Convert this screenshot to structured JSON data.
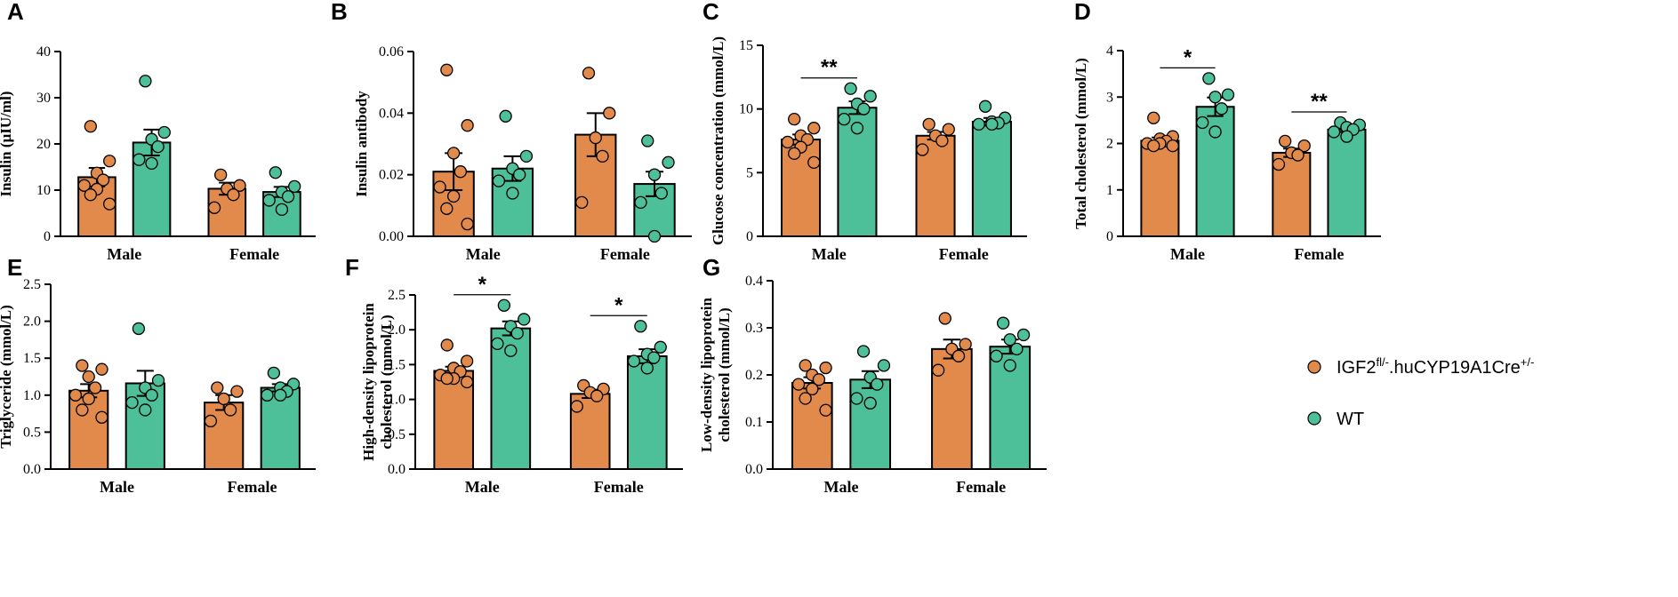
{
  "colors": {
    "ko": "#E28A4B",
    "wt": "#4DBF99",
    "axis": "#000000"
  },
  "legend": {
    "ko_base": "IGF2",
    "ko_sup1": "fl/-",
    "ko_mid": ".huCYP19A1Cre",
    "ko_sup2": "+/-",
    "wt": "WT"
  },
  "chart_data": [
    {
      "panel": "A",
      "type": "bar",
      "ylabel": "Insulin (µIU/ml)",
      "ylim": [
        0,
        40
      ],
      "yticks": [
        0,
        10,
        20,
        30,
        40
      ],
      "tick_labels": [
        "0",
        "10",
        "20",
        "30",
        "40"
      ],
      "categories": [
        "Male",
        "Female"
      ],
      "series": [
        {
          "name": "IGF2fl/-.huCYP19A1Cre+/-",
          "values": [
            12.8,
            10.3
          ],
          "sem": [
            2.0,
            1.3
          ],
          "points": [
            [
              23.8,
              16.3,
              13.7,
              12.2,
              11.0,
              10.2,
              9.0,
              7.0
            ],
            [
              13.3,
              11.0,
              10.3,
              9.0,
              6.2
            ]
          ]
        },
        {
          "name": "WT",
          "values": [
            20.3,
            9.6
          ],
          "sem": [
            2.8,
            1.1
          ],
          "points": [
            [
              33.6,
              22.5,
              21.0,
              19.4,
              16.6,
              15.8
            ],
            [
              13.8,
              10.8,
              9.6,
              8.6,
              7.8,
              5.8
            ]
          ]
        }
      ],
      "significance": []
    },
    {
      "panel": "B",
      "type": "bar",
      "ylabel": "Insulin antibody",
      "ylim": [
        0,
        0.06
      ],
      "yticks": [
        0,
        0.02,
        0.04,
        0.06
      ],
      "tick_labels": [
        "0.00",
        "0.02",
        "0.04",
        "0.06"
      ],
      "categories": [
        "Male",
        "Female"
      ],
      "series": [
        {
          "name": "IGF2fl/-.huCYP19A1Cre+/-",
          "values": [
            0.021,
            0.033
          ],
          "sem": [
            0.006,
            0.007
          ],
          "points": [
            [
              0.054,
              0.036,
              0.027,
              0.021,
              0.016,
              0.013,
              0.009,
              0.004
            ],
            [
              0.053,
              0.04,
              0.032,
              0.026,
              0.011
            ]
          ]
        },
        {
          "name": "WT",
          "values": [
            0.022,
            0.017
          ],
          "sem": [
            0.004,
            0.004
          ],
          "points": [
            [
              0.039,
              0.026,
              0.022,
              0.02,
              0.018,
              0.014
            ],
            [
              0.031,
              0.024,
              0.02,
              0.014,
              0.011,
              0.0
            ]
          ]
        }
      ],
      "significance": []
    },
    {
      "panel": "C",
      "type": "bar",
      "ylabel": "Glucose concentration (mmol/L)",
      "ylim": [
        0,
        15
      ],
      "yticks": [
        0,
        5,
        10,
        15
      ],
      "tick_labels": [
        "0",
        "5",
        "10",
        "15"
      ],
      "categories": [
        "Male",
        "Female"
      ],
      "series": [
        {
          "name": "IGF2fl/-.huCYP19A1Cre+/-",
          "values": [
            7.6,
            7.9
          ],
          "sem": [
            0.4,
            0.3
          ],
          "points": [
            [
              9.2,
              8.5,
              7.9,
              7.6,
              7.4,
              7.0,
              6.5,
              5.8
            ],
            [
              8.8,
              8.4,
              7.9,
              7.5,
              6.8
            ]
          ]
        },
        {
          "name": "WT",
          "values": [
            10.1,
            9.0
          ],
          "sem": [
            0.5,
            0.3
          ],
          "points": [
            [
              11.6,
              11.0,
              10.4,
              10.0,
              9.2,
              8.5
            ],
            [
              10.2,
              9.3,
              9.0,
              8.9,
              8.8,
              8.8
            ]
          ]
        }
      ],
      "significance": [
        {
          "category": "Male",
          "label": "**"
        }
      ]
    },
    {
      "panel": "D",
      "type": "bar",
      "ylabel": "Total cholesterol (mmol/L)",
      "ylim": [
        0,
        4
      ],
      "yticks": [
        0,
        1,
        2,
        3,
        4
      ],
      "tick_labels": [
        "0",
        "1",
        "2",
        "3",
        "4"
      ],
      "categories": [
        "Male",
        "Female"
      ],
      "series": [
        {
          "name": "IGF2fl/-.huCYP19A1Cre+/-",
          "values": [
            2.06,
            1.8
          ],
          "sem": [
            0.07,
            0.09
          ],
          "points": [
            [
              2.55,
              2.15,
              2.1,
              2.05,
              2.0,
              2.0,
              1.95,
              1.95
            ],
            [
              2.05,
              1.95,
              1.8,
              1.75,
              1.55
            ]
          ]
        },
        {
          "name": "WT",
          "values": [
            2.79,
            2.3
          ],
          "sem": [
            0.2,
            0.05
          ],
          "points": [
            [
              3.4,
              3.05,
              3.0,
              2.75,
              2.45,
              2.25
            ],
            [
              2.45,
              2.4,
              2.35,
              2.3,
              2.25,
              2.15
            ]
          ]
        }
      ],
      "significance": [
        {
          "category": "Male",
          "label": "*"
        },
        {
          "category": "Female",
          "label": "**"
        }
      ]
    },
    {
      "panel": "E",
      "type": "bar",
      "ylabel": "Triglyceride (mmol/L)",
      "ylim": [
        0,
        2.5
      ],
      "yticks": [
        0,
        0.5,
        1.0,
        1.5,
        2.0,
        2.5
      ],
      "tick_labels": [
        "0.0",
        "0.5",
        "1.0",
        "1.5",
        "2.0",
        "2.5"
      ],
      "categories": [
        "Male",
        "Female"
      ],
      "series": [
        {
          "name": "IGF2fl/-.huCYP19A1Cre+/-",
          "values": [
            1.06,
            0.9
          ],
          "sem": [
            0.09,
            0.1
          ],
          "points": [
            [
              1.4,
              1.35,
              1.25,
              1.1,
              1.0,
              0.95,
              0.8,
              0.7
            ],
            [
              1.1,
              1.05,
              0.95,
              0.8,
              0.65
            ]
          ]
        },
        {
          "name": "WT",
          "values": [
            1.16,
            1.1
          ],
          "sem": [
            0.17,
            0.05
          ],
          "points": [
            [
              1.9,
              1.2,
              1.1,
              1.0,
              0.9,
              0.8
            ],
            [
              1.3,
              1.15,
              1.1,
              1.05,
              1.0,
              1.0
            ]
          ]
        }
      ],
      "significance": []
    },
    {
      "panel": "F",
      "type": "bar",
      "ylabel": "High-density lipoprotein cholesterol (mmol/L)",
      "ylim": [
        0,
        2.5
      ],
      "yticks": [
        0,
        0.5,
        1.0,
        1.5,
        2.0,
        2.5
      ],
      "tick_labels": [
        "0.0",
        "0.5",
        "1.0",
        "1.5",
        "2.0",
        "2.5"
      ],
      "categories": [
        "Male",
        "Female"
      ],
      "series": [
        {
          "name": "IGF2fl/-.huCYP19A1Cre+/-",
          "values": [
            1.41,
            1.08
          ],
          "sem": [
            0.06,
            0.06
          ],
          "points": [
            [
              1.78,
              1.55,
              1.45,
              1.4,
              1.35,
              1.3,
              1.3,
              1.25
            ],
            [
              1.2,
              1.15,
              1.1,
              1.05,
              0.9
            ]
          ]
        },
        {
          "name": "WT",
          "values": [
            2.02,
            1.62
          ],
          "sem": [
            0.1,
            0.1
          ],
          "points": [
            [
              2.35,
              2.15,
              2.05,
              1.95,
              1.8,
              1.7
            ],
            [
              2.05,
              1.75,
              1.65,
              1.6,
              1.55,
              1.45
            ]
          ]
        }
      ],
      "significance": [
        {
          "category": "Male",
          "label": "*"
        },
        {
          "category": "Female",
          "label": "*"
        }
      ]
    },
    {
      "panel": "G",
      "type": "bar",
      "ylabel": "Low-density lipoprotein cholesterol (mmol/L)",
      "ylim": [
        0,
        0.4
      ],
      "yticks": [
        0,
        0.1,
        0.2,
        0.3,
        0.4
      ],
      "tick_labels": [
        "0.0",
        "0.1",
        "0.2",
        "0.3",
        "0.4"
      ],
      "categories": [
        "Male",
        "Female"
      ],
      "series": [
        {
          "name": "IGF2fl/-.huCYP19A1Cre+/-",
          "values": [
            0.183,
            0.255
          ],
          "sem": [
            0.012,
            0.02
          ],
          "points": [
            [
              0.22,
              0.215,
              0.2,
              0.19,
              0.18,
              0.17,
              0.15,
              0.125
            ],
            [
              0.32,
              0.265,
              0.255,
              0.24,
              0.21
            ]
          ]
        },
        {
          "name": "WT",
          "values": [
            0.19,
            0.26
          ],
          "sem": [
            0.018,
            0.015
          ],
          "points": [
            [
              0.25,
              0.22,
              0.195,
              0.18,
              0.15,
              0.14
            ],
            [
              0.31,
              0.285,
              0.275,
              0.255,
              0.24,
              0.22
            ]
          ]
        }
      ],
      "significance": []
    }
  ]
}
